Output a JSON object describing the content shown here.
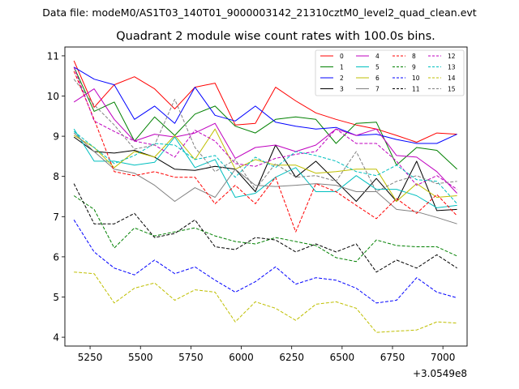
{
  "header": {
    "data_file": "Data file: modeM0/AS1T03_140T01_9000003142_21310cztM0_level2_quad_clean.evt"
  },
  "chart_data": {
    "type": "line",
    "title": "Quadrant 2 module wise count rates with 100.0s bins.",
    "xlabel": "",
    "ylabel": "",
    "x_offset_label": "+3.0549e8",
    "xlim": [
      5125,
      7120
    ],
    "ylim": [
      3.78,
      11.22
    ],
    "xticks": [
      5250,
      5500,
      5750,
      6000,
      6250,
      6500,
      6750,
      7000
    ],
    "yticks": [
      4,
      5,
      6,
      7,
      8,
      9,
      10,
      11
    ],
    "grid": false,
    "legend_position": "top-right",
    "legend_columns": 4,
    "x": [
      5170,
      5270,
      5370,
      5470,
      5570,
      5670,
      5770,
      5870,
      5970,
      6070,
      6170,
      6270,
      6370,
      6470,
      6570,
      6670,
      6770,
      6870,
      6970,
      7070
    ],
    "series": [
      {
        "name": "0",
        "color": "#ff0000",
        "dash": "solid",
        "values": [
          10.88,
          9.72,
          10.28,
          10.48,
          10.18,
          9.68,
          10.22,
          10.32,
          9.28,
          9.32,
          10.22,
          9.88,
          9.58,
          9.42,
          9.28,
          9.18,
          9.02,
          8.85,
          9.08,
          9.05
        ]
      },
      {
        "name": "1",
        "color": "#008000",
        "dash": "solid",
        "values": [
          10.72,
          9.62,
          9.85,
          8.88,
          9.48,
          9.02,
          9.55,
          9.75,
          9.25,
          9.08,
          9.42,
          9.48,
          9.42,
          8.82,
          9.32,
          9.35,
          8.28,
          8.72,
          8.65,
          8.18
        ]
      },
      {
        "name": "2",
        "color": "#0000ff",
        "dash": "solid",
        "values": [
          10.72,
          10.42,
          10.28,
          9.42,
          9.75,
          9.32,
          10.22,
          9.52,
          9.38,
          9.75,
          9.35,
          9.25,
          9.18,
          9.22,
          9.02,
          9.05,
          8.92,
          8.82,
          8.82,
          9.05
        ]
      },
      {
        "name": "3",
        "color": "#000000",
        "dash": "solid",
        "values": [
          8.98,
          8.62,
          8.58,
          8.65,
          8.48,
          8.18,
          8.15,
          8.25,
          8.18,
          7.62,
          8.78,
          7.98,
          8.38,
          7.88,
          7.38,
          7.95,
          7.38,
          8.38,
          7.15,
          7.18
        ]
      },
      {
        "name": "4",
        "color": "#bf00bf",
        "dash": "solid",
        "values": [
          9.85,
          10.18,
          9.42,
          8.88,
          9.05,
          8.98,
          9.08,
          9.32,
          8.45,
          8.72,
          8.78,
          8.62,
          8.78,
          9.18,
          9.02,
          9.18,
          8.52,
          8.48,
          8.12,
          7.58
        ]
      },
      {
        "name": "5",
        "color": "#00bfbf",
        "dash": "solid",
        "values": [
          9.18,
          8.38,
          8.38,
          8.28,
          8.35,
          8.98,
          8.22,
          8.42,
          7.48,
          7.58,
          7.98,
          8.22,
          7.62,
          7.62,
          8.02,
          7.68,
          7.68,
          7.52,
          7.22,
          7.28
        ]
      },
      {
        "name": "6",
        "color": "#bfbf00",
        "dash": "solid",
        "values": [
          9.02,
          8.72,
          8.22,
          8.62,
          8.48,
          9.02,
          8.42,
          9.18,
          8.18,
          8.42,
          8.28,
          8.28,
          8.08,
          8.12,
          8.18,
          8.18,
          7.38,
          7.82,
          7.48,
          7.52
        ]
      },
      {
        "name": "7",
        "color": "#808080",
        "dash": "solid",
        "values": [
          9.08,
          8.62,
          8.18,
          8.08,
          7.78,
          7.38,
          7.72,
          7.48,
          8.18,
          7.78,
          7.75,
          7.78,
          7.82,
          7.78,
          7.62,
          7.62,
          7.18,
          7.12,
          6.98,
          6.82
        ]
      },
      {
        "name": "8",
        "color": "#ff0000",
        "dash": "dashed",
        "values": [
          10.62,
          9.42,
          8.12,
          8.02,
          8.12,
          7.98,
          7.98,
          7.32,
          7.78,
          7.32,
          7.98,
          6.62,
          7.82,
          7.62,
          7.28,
          6.95,
          7.45,
          7.08,
          7.55,
          7.02
        ]
      },
      {
        "name": "9",
        "color": "#008000",
        "dash": "dashed",
        "values": [
          7.52,
          7.18,
          6.22,
          6.72,
          6.52,
          6.62,
          6.72,
          6.52,
          6.38,
          6.32,
          6.48,
          6.38,
          6.28,
          5.98,
          5.88,
          6.42,
          6.28,
          6.25,
          6.25,
          6.02
        ]
      },
      {
        "name": "10",
        "color": "#0000ff",
        "dash": "dashed",
        "values": [
          6.92,
          6.12,
          5.72,
          5.55,
          5.92,
          5.58,
          5.75,
          5.42,
          5.12,
          5.38,
          5.75,
          5.32,
          5.48,
          5.42,
          5.22,
          4.85,
          4.92,
          5.48,
          5.12,
          4.98
        ]
      },
      {
        "name": "11",
        "color": "#000000",
        "dash": "dashed",
        "values": [
          7.82,
          6.82,
          6.82,
          7.08,
          6.48,
          6.58,
          6.92,
          6.25,
          6.18,
          6.48,
          6.42,
          6.12,
          6.32,
          6.12,
          6.32,
          5.62,
          5.92,
          5.72,
          6.05,
          5.72
        ]
      },
      {
        "name": "12",
        "color": "#bf00bf",
        "dash": "dashed",
        "values": [
          10.72,
          9.38,
          9.12,
          8.88,
          8.78,
          8.48,
          9.15,
          8.88,
          8.32,
          8.25,
          8.45,
          8.55,
          8.62,
          9.18,
          8.82,
          8.82,
          8.38,
          7.78,
          8.02,
          7.68
        ]
      },
      {
        "name": "13",
        "color": "#00bfbf",
        "dash": "dashed",
        "values": [
          9.12,
          8.72,
          8.32,
          8.52,
          8.82,
          8.78,
          8.42,
          8.52,
          7.98,
          8.48,
          8.22,
          8.62,
          8.52,
          8.38,
          8.12,
          8.02,
          8.28,
          7.92,
          7.88,
          7.32
        ]
      },
      {
        "name": "14",
        "color": "#bfbf00",
        "dash": "dashed",
        "values": [
          5.62,
          5.58,
          4.85,
          5.22,
          5.35,
          4.92,
          5.18,
          5.12,
          4.38,
          4.88,
          4.72,
          4.42,
          4.82,
          4.88,
          4.72,
          4.12,
          4.15,
          4.18,
          4.38,
          4.35
        ]
      },
      {
        "name": "15",
        "color": "#808080",
        "dash": "dashed",
        "values": [
          10.42,
          9.78,
          9.28,
          8.68,
          8.78,
          9.92,
          8.72,
          8.12,
          8.42,
          7.68,
          8.32,
          7.98,
          8.02,
          7.88,
          8.62,
          7.62,
          7.88,
          8.02,
          7.82,
          7.88
        ]
      }
    ]
  }
}
